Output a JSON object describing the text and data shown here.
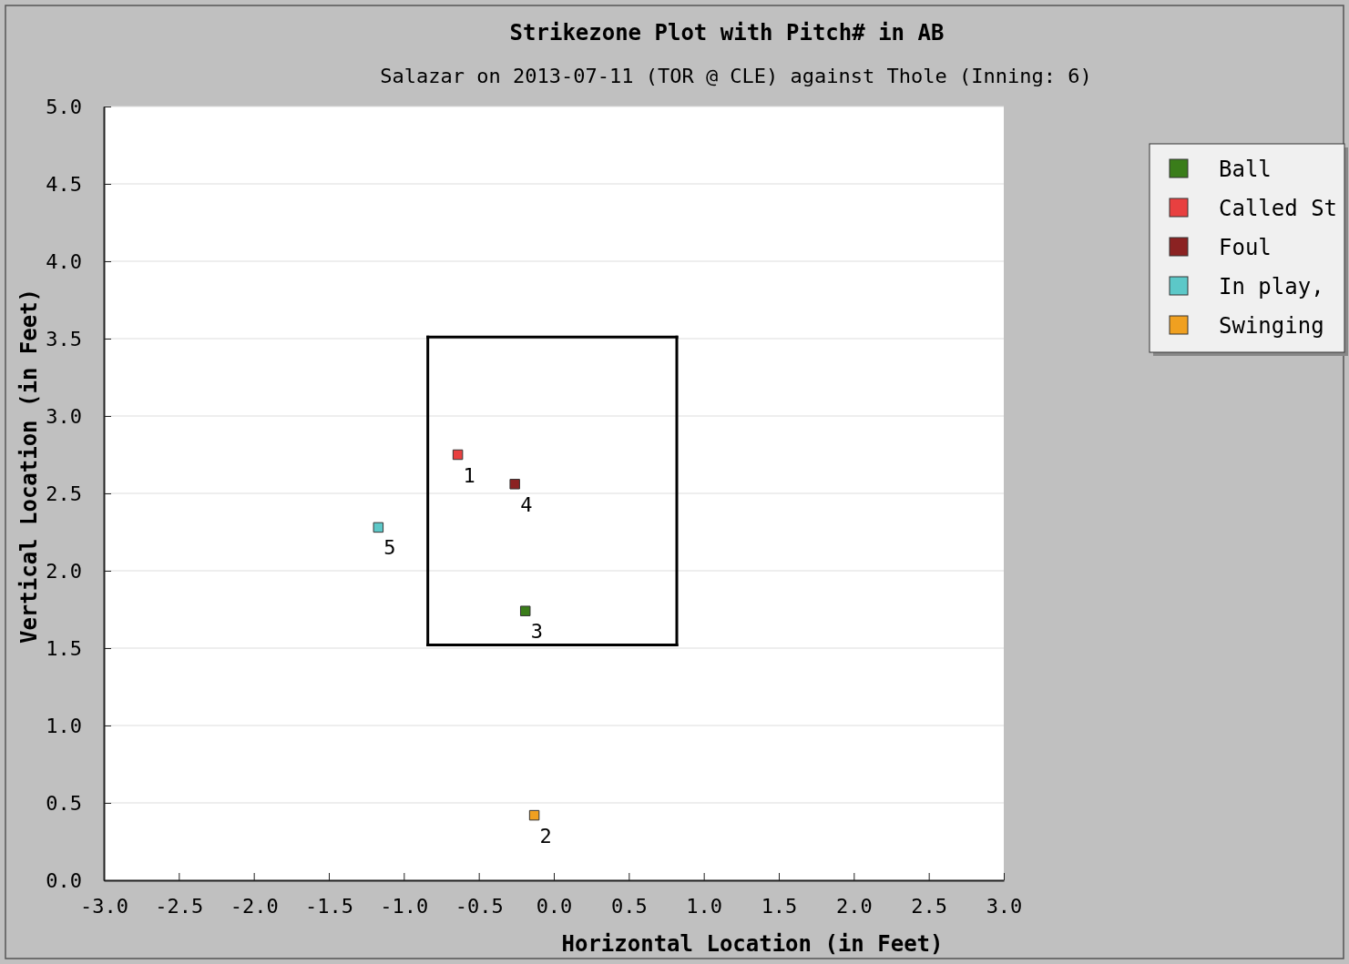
{
  "chart_data": {
    "type": "scatter",
    "title": "Strikezone Plot with Pitch# in AB",
    "subtitle": "Salazar on 2013-07-11 (TOR @ CLE) against Thole (Inning: 6)",
    "xlabel": "Horizontal Location (in Feet)",
    "ylabel": "Vertical Location (in Feet)",
    "xlim": [
      -3,
      3
    ],
    "xticks": [
      {
        "value": -3,
        "label": "-3.0"
      },
      {
        "value": -2.5,
        "label": "-2.5"
      },
      {
        "value": -2,
        "label": "-2.0"
      },
      {
        "value": -1.5,
        "label": "-1.5"
      },
      {
        "value": -1,
        "label": "-1.0"
      },
      {
        "value": -0.5,
        "label": "-0.5"
      },
      {
        "value": 0,
        "label": "0.0"
      },
      {
        "value": 0.5,
        "label": "0.5"
      },
      {
        "value": 1,
        "label": "1.0"
      },
      {
        "value": 1.5,
        "label": "1.5"
      },
      {
        "value": 2,
        "label": "2.0"
      },
      {
        "value": 2.5,
        "label": "2.5"
      },
      {
        "value": 3,
        "label": "3.0"
      }
    ],
    "ylim": [
      0,
      5
    ],
    "yticks": [
      {
        "value": 0,
        "label": "0.0"
      },
      {
        "value": 0.5,
        "label": "0.5"
      },
      {
        "value": 1,
        "label": "1.0"
      },
      {
        "value": 1.5,
        "label": "1.5"
      },
      {
        "value": 2,
        "label": "2.0"
      },
      {
        "value": 2.5,
        "label": "2.5"
      },
      {
        "value": 3,
        "label": "3.0"
      },
      {
        "value": 3.5,
        "label": "3.5"
      },
      {
        "value": 4,
        "label": "4.0"
      },
      {
        "value": 4.5,
        "label": "4.5"
      },
      {
        "value": 5,
        "label": "5.0"
      }
    ],
    "grid": "y",
    "legend": "right",
    "marker": "square",
    "series": [
      {
        "name": "Ball",
        "color": "#3a7d1a",
        "x": [
          -0.19
        ],
        "values": [
          1.74
        ]
      },
      {
        "name": "Called St",
        "color": "#e84040",
        "x": [
          -0.64
        ],
        "values": [
          2.75
        ]
      },
      {
        "name": "Foul",
        "color": "#8b2222",
        "x": [
          -0.26
        ],
        "values": [
          2.56
        ]
      },
      {
        "name": "In play,",
        "color": "#5cc8c8",
        "x": [
          -1.17
        ],
        "values": [
          2.28
        ]
      },
      {
        "name": "Swinging",
        "color": "#f0a020",
        "x": [
          -0.13
        ],
        "values": [
          0.42
        ]
      },
      {
        "type": "line",
        "marker": "none",
        "color": "#000000",
        "x": [
          -0.84,
          0.82
        ],
        "values": [
          1.52,
          1.52
        ]
      },
      {
        "type": "line",
        "marker": "none",
        "color": "#000000",
        "x": [
          0.82,
          0.82
        ],
        "values": [
          1.52,
          3.51
        ]
      },
      {
        "type": "line",
        "marker": "none",
        "color": "#000000",
        "x": [
          -0.84,
          0.82
        ],
        "values": [
          3.51,
          3.51
        ]
      },
      {
        "type": "line",
        "marker": "none",
        "color": "#000000",
        "x": [
          -0.84,
          -0.84
        ],
        "values": [
          1.52,
          3.51
        ]
      }
    ],
    "annotations": [
      {
        "text": "1",
        "x": -0.64,
        "y": 2.75
      },
      {
        "text": "2",
        "x": -0.13,
        "y": 0.42
      },
      {
        "text": "3",
        "x": -0.19,
        "y": 1.74
      },
      {
        "text": "4",
        "x": -0.26,
        "y": 2.56
      },
      {
        "text": "5",
        "x": -1.17,
        "y": 2.28
      }
    ]
  }
}
